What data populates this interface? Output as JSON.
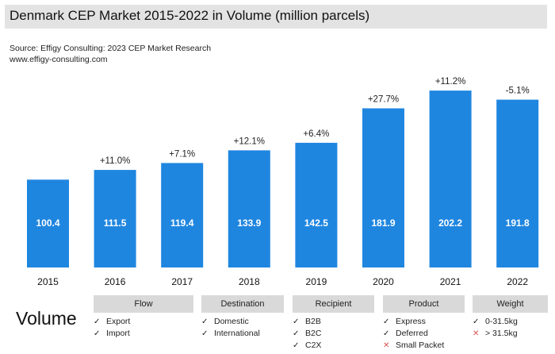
{
  "title": "Denmark CEP Market 2015-2022 in Volume (million parcels)",
  "source_line1": "Source: Effigy Consulting: 2023 CEP Market Research",
  "source_line2": "www.effigy-consulting.com",
  "colors": {
    "bar": "#1f86e0",
    "header": "#d9d9d9",
    "x_mark": "#d9534f"
  },
  "chart_data": {
    "type": "bar",
    "title": "Denmark CEP Market 2015-2022 in Volume (million parcels)",
    "categories": [
      "2015",
      "2016",
      "2017",
      "2018",
      "2019",
      "2020",
      "2021",
      "2022"
    ],
    "values": [
      100.4,
      111.5,
      119.4,
      133.9,
      142.5,
      181.9,
      202.2,
      191.8
    ],
    "growth_labels": [
      "",
      "+11.0%",
      "+7.1%",
      "+12.1%",
      "+6.4%",
      "+27.7%",
      "+11.2%",
      "-5.1%"
    ],
    "xlabel": "",
    "ylabel": "",
    "ylim": [
      0,
      215
    ]
  },
  "legend": {
    "label": "Volume",
    "categories": [
      {
        "name": "Flow",
        "items": [
          {
            "mark": "check",
            "text": "Export"
          },
          {
            "mark": "check",
            "text": "Import"
          }
        ]
      },
      {
        "name": "Destination",
        "items": [
          {
            "mark": "check",
            "text": "Domestic"
          },
          {
            "mark": "check",
            "text": "International"
          }
        ]
      },
      {
        "name": "Recipient",
        "items": [
          {
            "mark": "check",
            "text": "B2B"
          },
          {
            "mark": "check",
            "text": "B2C"
          },
          {
            "mark": "check",
            "text": "C2X"
          }
        ]
      },
      {
        "name": "Product",
        "items": [
          {
            "mark": "check",
            "text": "Express"
          },
          {
            "mark": "check",
            "text": "Deferred"
          },
          {
            "mark": "cross",
            "text": "Small Packet"
          }
        ]
      },
      {
        "name": "Weight",
        "items": [
          {
            "mark": "check",
            "text": "0-31.5kg"
          },
          {
            "mark": "cross",
            "text": "> 31.5kg"
          }
        ]
      }
    ]
  }
}
